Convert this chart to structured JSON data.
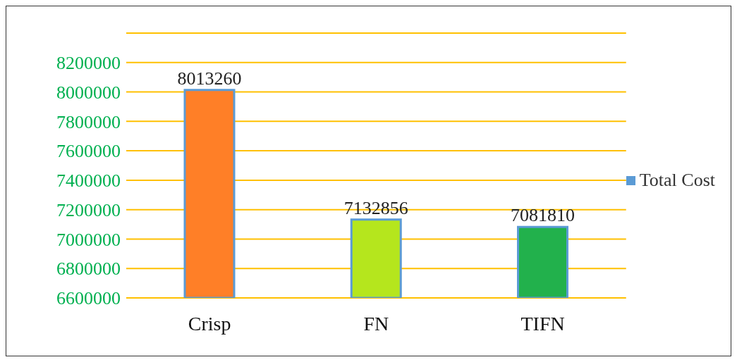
{
  "chart_data": {
    "type": "bar",
    "categories": [
      "Crisp",
      "FN",
      "TIFN"
    ],
    "series": [
      {
        "name": "Total Cost",
        "color": "#5b9bd5",
        "colors": [
          "#ff7f27",
          "#b5e61d",
          "#22b14c"
        ],
        "values": [
          8013260,
          7132856,
          7081810
        ]
      }
    ],
    "ylim": [
      6600000,
      8400000
    ],
    "yticks": [
      6600000,
      6800000,
      7000000,
      7200000,
      7400000,
      7600000,
      7800000,
      8000000,
      8200000,
      {
        "value": 8400000,
        "label": null
      }
    ],
    "grid": "y",
    "legend": "right",
    "data_labels": true
  }
}
